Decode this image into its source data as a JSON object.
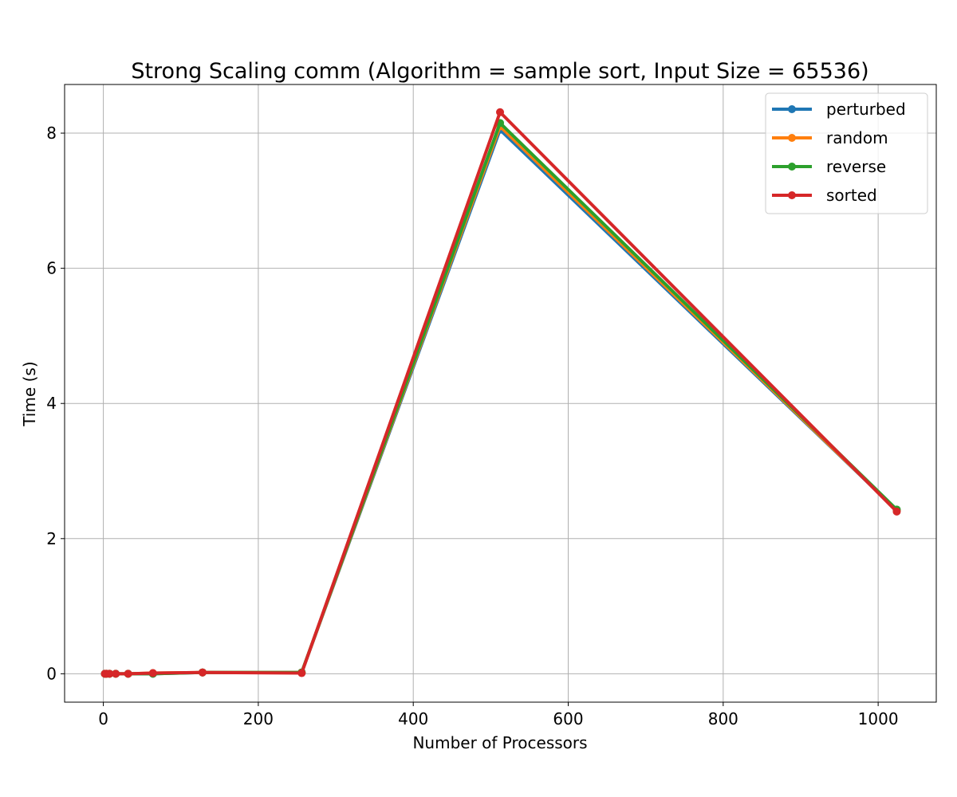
{
  "chart_data": {
    "type": "line",
    "title": "Strong Scaling comm (Algorithm = sample sort, Input Size = 65536)",
    "xlabel": "Number of Processors",
    "ylabel": "Time (s)",
    "xlim": [
      -50,
      1075
    ],
    "ylim": [
      -0.42,
      8.72
    ],
    "xticks": [
      0,
      200,
      400,
      600,
      800,
      1000
    ],
    "yticks": [
      0,
      2,
      4,
      6,
      8
    ],
    "grid": true,
    "legend_position": "top-right",
    "x": [
      2,
      4,
      8,
      16,
      32,
      64,
      128,
      256,
      512,
      1024
    ],
    "series": [
      {
        "name": "perturbed",
        "color": "#1f77b4",
        "values": [
          0.0,
          0.0,
          0.0,
          0.0,
          0.0,
          0.0,
          0.02,
          0.02,
          8.05,
          2.42
        ]
      },
      {
        "name": "random",
        "color": "#ff7f0e",
        "values": [
          0.0,
          0.0,
          0.0,
          0.0,
          0.0,
          0.01,
          0.02,
          0.02,
          8.1,
          2.42
        ]
      },
      {
        "name": "reverse",
        "color": "#2ca02c",
        "values": [
          0.0,
          0.0,
          0.0,
          0.0,
          0.0,
          0.0,
          0.02,
          0.02,
          8.15,
          2.43
        ]
      },
      {
        "name": "sorted",
        "color": "#d62728",
        "values": [
          0.0,
          0.0,
          0.0,
          0.0,
          0.0,
          0.01,
          0.02,
          0.01,
          8.31,
          2.4
        ]
      }
    ]
  }
}
